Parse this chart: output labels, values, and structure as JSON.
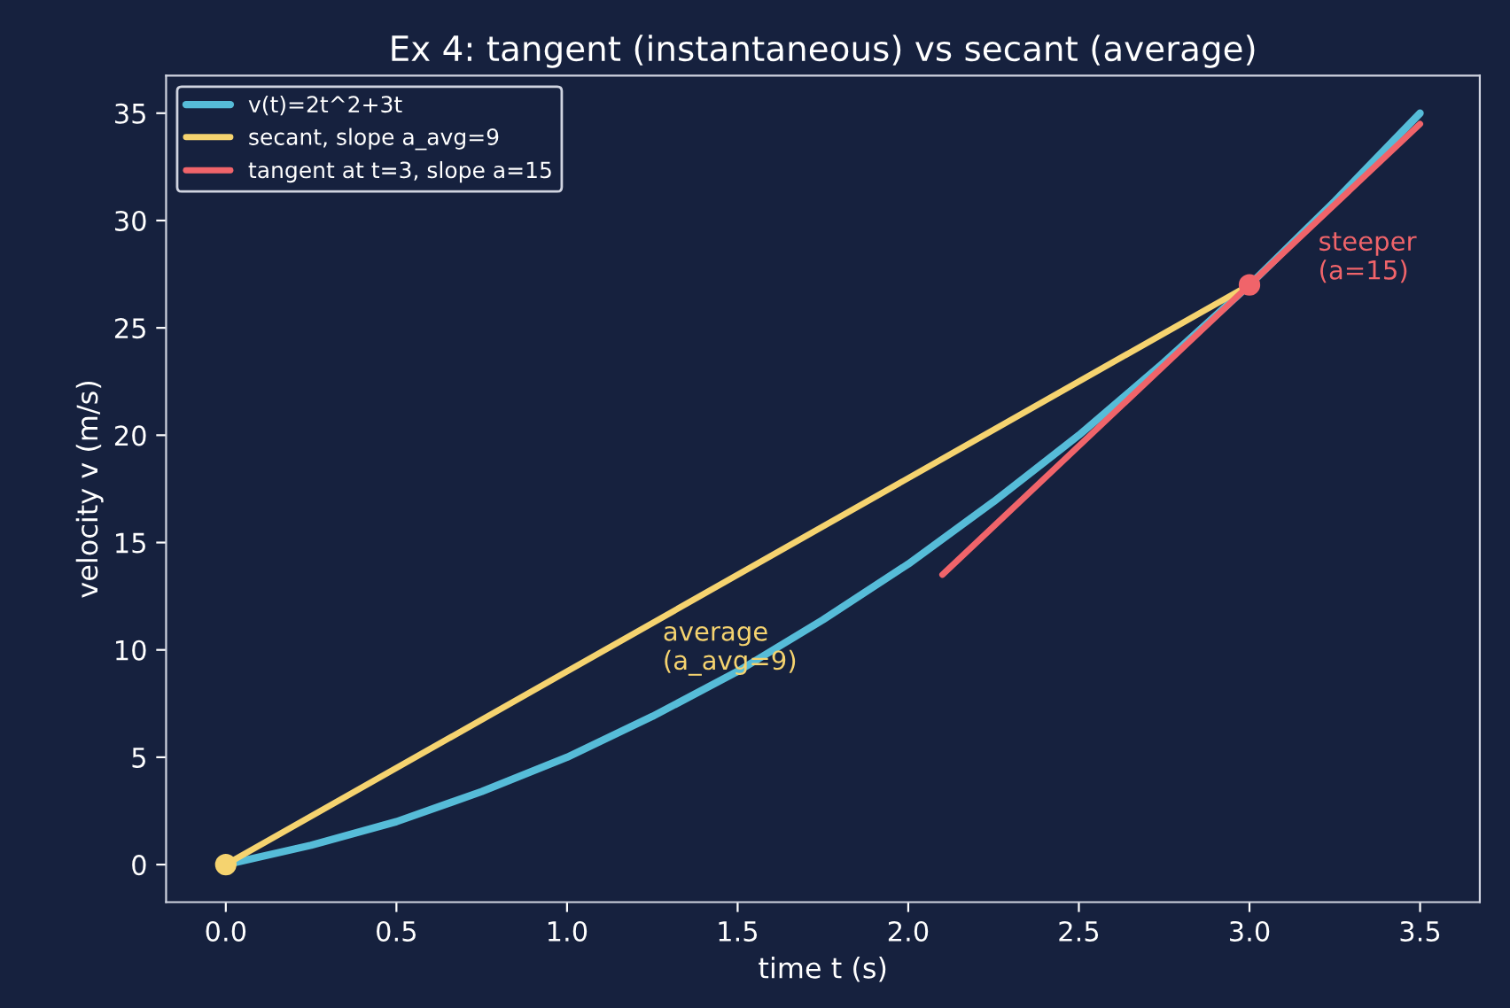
{
  "chart_data": {
    "type": "line",
    "title": "Ex 4: tangent (instantaneous) vs secant (average)",
    "xlabel": "time t (s)",
    "ylabel": "velocity v (m/s)",
    "series": [
      {
        "name": "v(t)=2t^2+3t",
        "color": "#56bcd8",
        "x": [
          0,
          0.25,
          0.5,
          0.75,
          1.0,
          1.25,
          1.5,
          1.75,
          2.0,
          2.25,
          2.5,
          2.75,
          3.0,
          3.25,
          3.5
        ],
        "values": [
          0,
          0.9,
          2,
          3.4,
          5,
          6.9,
          9,
          11.4,
          14,
          16.9,
          20,
          23.4,
          27,
          30.9,
          35
        ]
      },
      {
        "name": "secant, slope a_avg=9",
        "color": "#f5d36f",
        "x": [
          0,
          3
        ],
        "values": [
          0,
          27
        ]
      },
      {
        "name": "tangent at t=3, slope a=15",
        "color": "#f0646a",
        "x": [
          2.1,
          3.5
        ],
        "values": [
          13.5,
          34.5
        ]
      },
      {
        "type": "scatter",
        "marker": "circle",
        "color": "#f5d36f",
        "x": [
          0
        ],
        "values": [
          0
        ]
      },
      {
        "type": "scatter",
        "marker": "circle",
        "color": "#f0646a",
        "x": [
          3
        ],
        "values": [
          27
        ]
      }
    ],
    "annotations": [
      "average\n(a_avg=9)",
      "steeper\n(a=15)"
    ],
    "xlim": [
      -0.175,
      3.675
    ],
    "ylim": [
      -1.75,
      36.75
    ],
    "xticks": [
      {
        "value": 0,
        "label": "0.0"
      },
      {
        "value": 0.5,
        "label": "0.5"
      },
      {
        "value": 1,
        "label": "1.0"
      },
      {
        "value": 1.5,
        "label": "1.5"
      },
      {
        "value": 2,
        "label": "2.0"
      },
      {
        "value": 2.5,
        "label": "2.5"
      },
      {
        "value": 3,
        "label": "3.0"
      },
      {
        "value": 3.5,
        "label": "3.5"
      }
    ],
    "yticks": [
      0,
      5,
      10,
      15,
      20,
      25,
      30,
      35
    ],
    "grid": false,
    "legend": "top left",
    "line_style": "solid"
  }
}
